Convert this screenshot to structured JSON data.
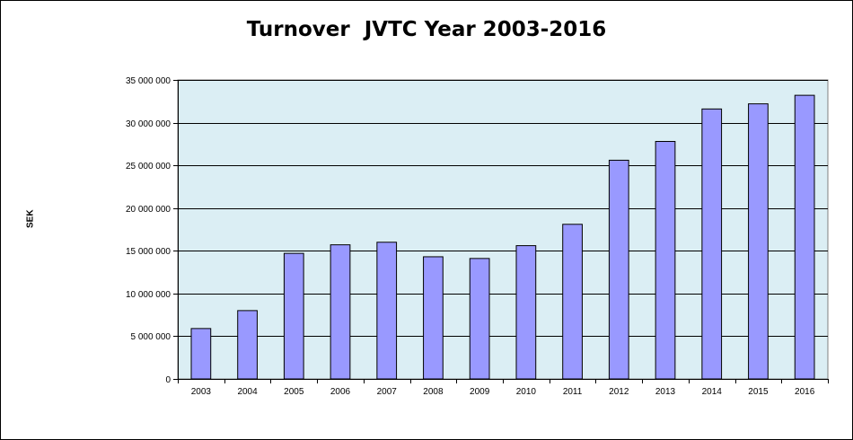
{
  "chart_data": {
    "type": "bar",
    "title": "Turnover  JVTC Year 2003-2016",
    "xlabel": "",
    "ylabel": "SEK",
    "categories": [
      "2003",
      "2004",
      "2005",
      "2006",
      "2007",
      "2008",
      "2009",
      "2010",
      "2011",
      "2012",
      "2013",
      "2014",
      "2015",
      "2016"
    ],
    "values": [
      5900000,
      8000000,
      14700000,
      15700000,
      16000000,
      14300000,
      14100000,
      15600000,
      18100000,
      25600000,
      27800000,
      31600000,
      32200000,
      33200000
    ],
    "ylim": [
      0,
      35000000
    ],
    "yticks": [
      0,
      5000000,
      10000000,
      15000000,
      20000000,
      25000000,
      30000000,
      35000000
    ],
    "ytick_labels": [
      "0",
      "5 000 000",
      "10 000 000",
      "15 000 000",
      "20 000 000",
      "25 000 000",
      "30 000 000",
      "35 000 000"
    ],
    "grid": true,
    "legend": "none",
    "colors": {
      "bar_fill": "#9999ff",
      "bar_stroke": "#000000",
      "plot_background": "#dbeef4",
      "gridline": "#000000"
    }
  }
}
